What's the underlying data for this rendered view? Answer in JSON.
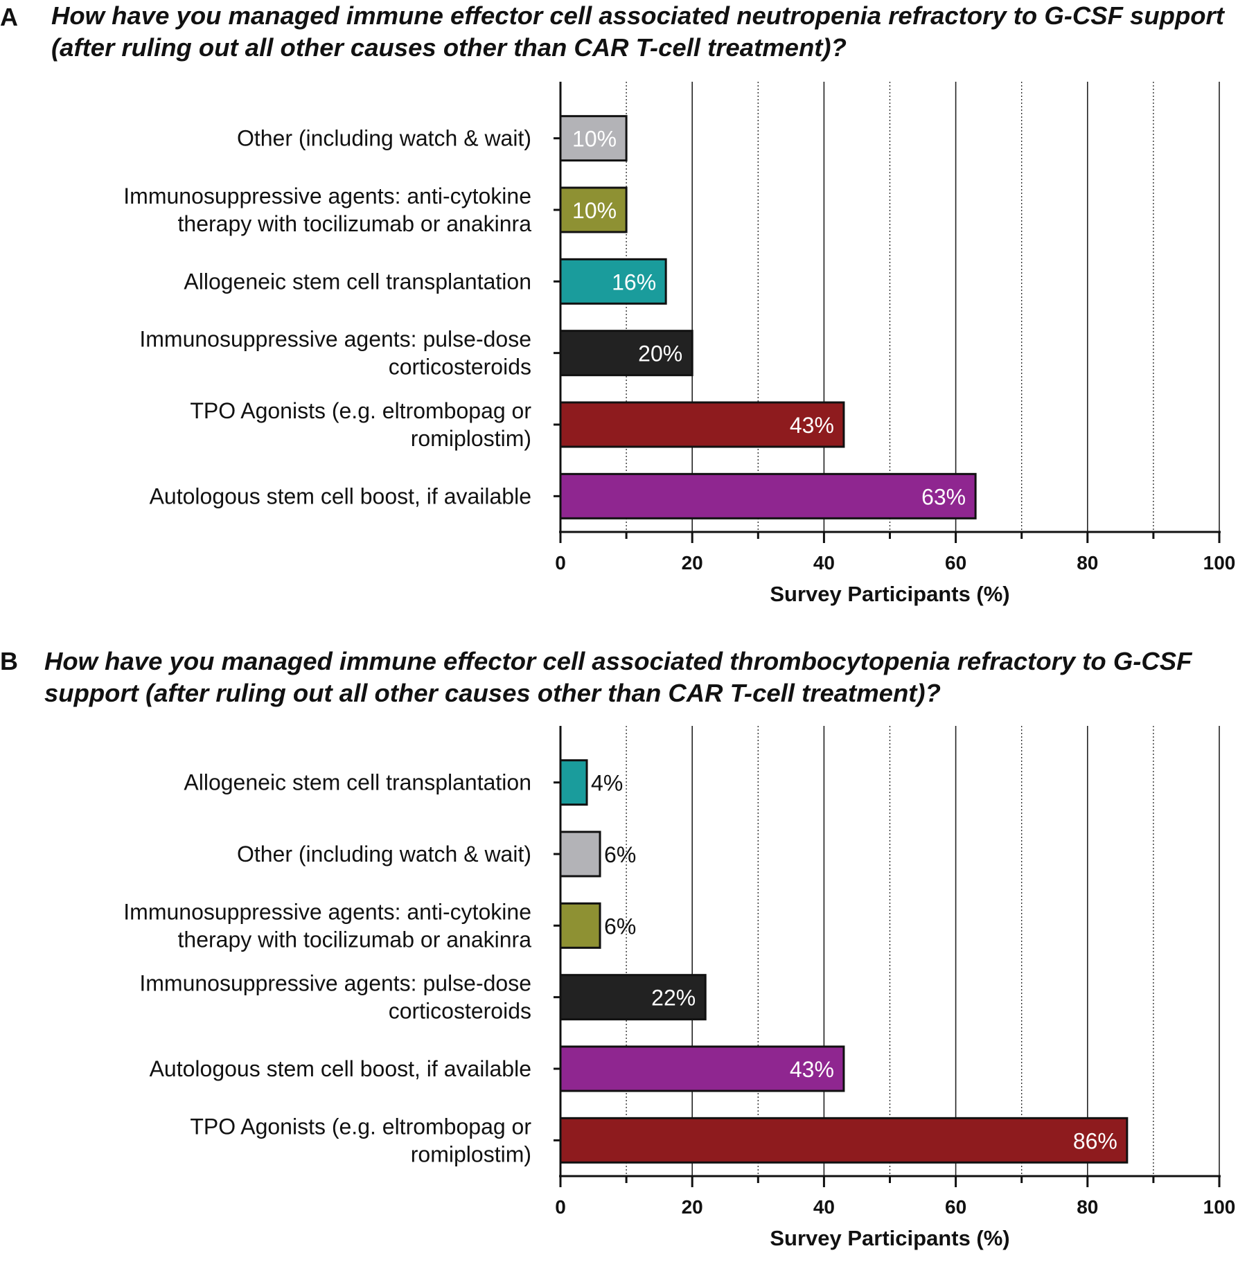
{
  "chart_data": [
    {
      "type": "bar",
      "orientation": "horizontal",
      "panel": "A",
      "title": "How have you managed immune effector cell associated neutropenia refractory to G-CSF support (after ruling out all other causes other than CAR T-cell treatment)?",
      "categories": [
        [
          "Other (including watch & wait)"
        ],
        [
          "Immunosuppressive agents: anti-cytokine",
          "therapy with tocilizumab or anakinra"
        ],
        [
          "Allogeneic stem cell transplantation"
        ],
        [
          "Immunosuppressive agents: pulse-dose",
          "corticosteroids"
        ],
        [
          "TPO Agonists (e.g. eltrombopag or",
          "romiplostim)"
        ],
        [
          "Autologous stem cell boost, if available"
        ]
      ],
      "values": [
        10,
        10,
        16,
        20,
        43,
        63
      ],
      "labels": [
        "10%",
        "10%",
        "16%",
        "20%",
        "43%",
        "63%"
      ],
      "colors": [
        "#b3b3b7",
        "#8e9133",
        "#1a9c9c",
        "#222222",
        "#8e1b1e",
        "#8f2690"
      ],
      "label_colors": [
        "#ffffff",
        "#ffffff",
        "#ffffff",
        "#ffffff",
        "#ffffff",
        "#ffffff"
      ],
      "label_inside": [
        true,
        true,
        true,
        true,
        true,
        true
      ],
      "xlabel": "Survey Participants (%)",
      "xlim": [
        0,
        100
      ],
      "xticks": [
        0,
        20,
        40,
        60,
        80,
        100
      ],
      "grid": "vertical, solid at 20-unit ticks, dotted at odd 10s"
    },
    {
      "type": "bar",
      "orientation": "horizontal",
      "panel": "B",
      "title": "How have you managed immune effector cell associated thrombocytopenia refractory to G-CSF support (after ruling out all other causes other than CAR T-cell treatment)?",
      "categories": [
        [
          "Allogeneic stem cell transplantation"
        ],
        [
          "Other (including watch & wait)"
        ],
        [
          "Immunosuppressive agents: anti-cytokine",
          "therapy with tocilizumab or anakinra"
        ],
        [
          "Immunosuppressive agents: pulse-dose",
          "corticosteroids"
        ],
        [
          "Autologous stem cell boost, if available"
        ],
        [
          "TPO Agonists (e.g. eltrombopag or",
          "romiplostim)"
        ]
      ],
      "values": [
        4,
        6,
        6,
        22,
        43,
        86
      ],
      "labels": [
        "4%",
        "6%",
        "6%",
        "22%",
        "43%",
        "86%"
      ],
      "colors": [
        "#1a9c9c",
        "#b3b3b7",
        "#8e9133",
        "#222222",
        "#8f2690",
        "#8e1b1e"
      ],
      "label_colors": [
        "#111111",
        "#111111",
        "#111111",
        "#ffffff",
        "#ffffff",
        "#ffffff"
      ],
      "label_inside": [
        false,
        false,
        false,
        true,
        true,
        true
      ],
      "xlabel": "Survey Participants (%)",
      "xlim": [
        0,
        100
      ],
      "xticks": [
        0,
        20,
        40,
        60,
        80,
        100
      ],
      "grid": "vertical, solid at 20-unit ticks, dotted at odd 10s"
    }
  ]
}
